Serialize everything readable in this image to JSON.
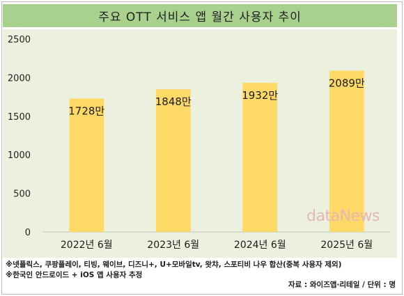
{
  "title": "주요 OTT 서비스 앱 월간 사용자 추이",
  "chart_data": {
    "type": "bar",
    "categories": [
      "2022년 6월",
      "2023년 6월",
      "2024년 6월",
      "2025년 6월"
    ],
    "values": [
      1728,
      1848,
      1932,
      2089
    ],
    "value_labels": [
      "1728만",
      "1848만",
      "1932만",
      "2089만"
    ],
    "ylim": [
      0,
      2500
    ],
    "yticks": [
      "0",
      "500",
      "1000",
      "1500",
      "2000",
      "2500"
    ],
    "grid": false,
    "bar_color": "#ffd966"
  },
  "notes": [
    "※넷플릭스, 쿠팡플레이, 티빙, 웨이브, 디즈니+, U+모바일tv, 왓챠, 스포티비 나우 합산(중복 사용자 제외)",
    "※한국인 안드로이드 + iOS 앱 사용자 추정"
  ],
  "source": "자료 : 와이즈앱·리테일 / 단위 : 명",
  "watermark": "dataNews",
  "colors": {
    "title_bar": "#a9d18e",
    "plot_background": "#ebf1de",
    "bar": "#ffd966"
  }
}
